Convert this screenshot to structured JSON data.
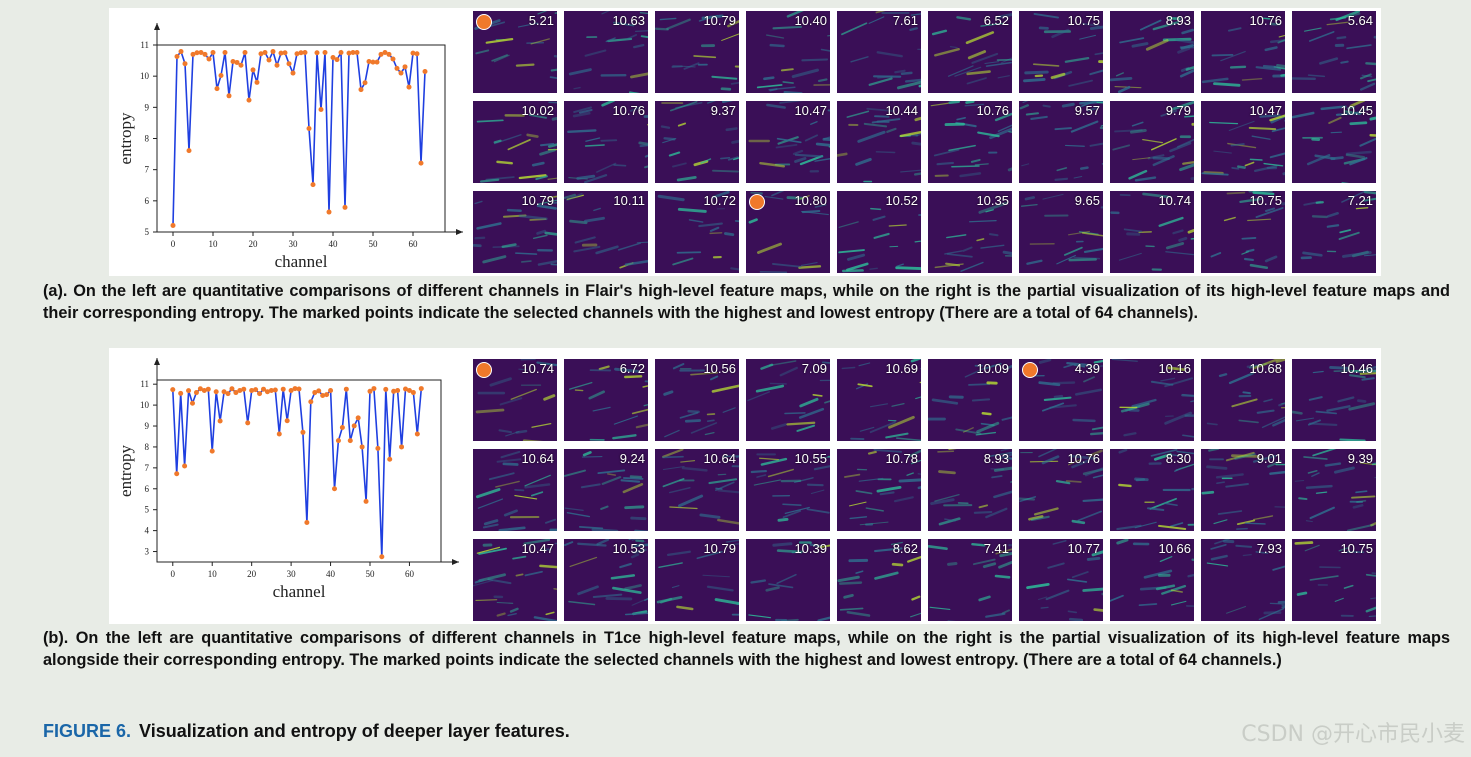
{
  "captions": {
    "a": "(a). On the left are quantitative comparisons of different channels in Flair's high-level feature maps, while on the right is the partial visualization of its high-level feature maps and their corresponding entropy. The marked points indicate the selected channels with the highest and lowest entropy (There are a total of 64 channels).",
    "b": "(b). On the left are quantitative comparisons of different channels in T1ce high-level feature maps, while on the right is the partial visualization of its high-level feature maps alongside their corresponding entropy. The marked points indicate the selected channels with the highest and lowest entropy. (There are a total of 64 channels.)"
  },
  "figure": {
    "label": "FIGURE 6.",
    "title": "Visualization and entropy of deeper layer features."
  },
  "watermark": "CSDN @开心市民小麦",
  "colors": {
    "line": "#1f3fe0",
    "marker": "#f0792b",
    "map_bg": "#3a0f57",
    "feature": "#2dbf9a",
    "label_blue": "#1a66a8"
  },
  "heatmaps_a": {
    "values": [
      "5.21",
      "10.63",
      "10.79",
      "10.40",
      "7.61",
      "6.52",
      "10.75",
      "8.93",
      "10.76",
      "5.64",
      "10.02",
      "10.76",
      "9.37",
      "10.47",
      "10.44",
      "10.76",
      "9.57",
      "9.79",
      "10.47",
      "10.45",
      "10.79",
      "10.11",
      "10.72",
      "10.80",
      "10.52",
      "10.35",
      "9.65",
      "10.74",
      "10.75",
      "7.21"
    ],
    "marked": [
      0,
      23
    ]
  },
  "heatmaps_b": {
    "values": [
      "10.74",
      "6.72",
      "10.56",
      "7.09",
      "10.69",
      "10.09",
      "4.39",
      "10.16",
      "10.68",
      "10.46",
      "10.64",
      "9.24",
      "10.64",
      "10.55",
      "10.78",
      "8.93",
      "10.76",
      "8.30",
      "9.01",
      "9.39",
      "10.47",
      "10.53",
      "10.79",
      "10.39",
      "8.62",
      "7.41",
      "10.77",
      "10.66",
      "7.93",
      "10.75"
    ],
    "marked": [
      0,
      6
    ]
  },
  "chart_data": [
    {
      "type": "line",
      "xlabel": "channel",
      "ylabel": "entropy",
      "xlim": [
        -4,
        68
      ],
      "ylim": [
        5,
        11
      ],
      "xticks": [
        0,
        10,
        20,
        30,
        40,
        50,
        60
      ],
      "yticks": [
        5,
        6,
        7,
        8,
        9,
        10,
        11
      ],
      "grid": false,
      "series": [
        {
          "x": [
            0,
            1,
            2,
            3,
            4,
            5,
            6,
            7,
            8,
            9,
            10,
            11,
            12,
            13,
            14,
            15,
            16,
            17,
            18,
            19,
            20,
            21,
            22,
            23,
            24,
            25,
            26,
            27,
            28,
            29,
            30,
            31,
            32,
            33,
            34,
            35,
            36,
            37,
            38,
            39,
            40,
            41,
            42,
            43,
            44,
            45,
            46,
            47,
            48,
            49,
            50,
            51,
            52,
            53,
            54,
            55,
            56,
            57,
            58,
            59,
            60,
            61,
            62,
            63
          ],
          "y": [
            5.21,
            10.63,
            10.79,
            10.4,
            7.61,
            10.7,
            10.75,
            10.76,
            10.7,
            10.55,
            10.76,
            9.6,
            10.02,
            10.76,
            9.37,
            10.47,
            10.44,
            10.35,
            10.76,
            9.23,
            10.2,
            9.8,
            10.72,
            10.76,
            10.52,
            10.79,
            10.35,
            10.74,
            10.75,
            10.4,
            10.1,
            10.72,
            10.75,
            10.76,
            8.32,
            6.52,
            10.75,
            8.93,
            10.76,
            5.64,
            10.6,
            10.53,
            10.76,
            5.79,
            10.74,
            10.76,
            10.76,
            9.57,
            9.79,
            10.47,
            10.45,
            10.45,
            10.7,
            10.76,
            10.7,
            10.55,
            10.25,
            10.1,
            10.3,
            9.65,
            10.74,
            10.72,
            7.21,
            10.15
          ]
        }
      ]
    },
    {
      "type": "line",
      "xlabel": "channel",
      "ylabel": "entropy",
      "xlim": [
        -4,
        68
      ],
      "ylim": [
        2.5,
        11.2
      ],
      "xticks": [
        0,
        10,
        20,
        30,
        40,
        50,
        60
      ],
      "yticks": [
        3,
        4,
        5,
        6,
        7,
        8,
        9,
        10,
        11
      ],
      "grid": false,
      "series": [
        {
          "x": [
            0,
            1,
            2,
            3,
            4,
            5,
            6,
            7,
            8,
            9,
            10,
            11,
            12,
            13,
            14,
            15,
            16,
            17,
            18,
            19,
            20,
            21,
            22,
            23,
            24,
            25,
            26,
            27,
            28,
            29,
            30,
            31,
            32,
            33,
            34,
            35,
            36,
            37,
            38,
            39,
            40,
            41,
            42,
            43,
            44,
            45,
            46,
            47,
            48,
            49,
            50,
            51,
            52,
            53,
            54,
            55,
            56,
            57,
            58,
            59,
            60,
            61,
            62,
            63
          ],
          "y": [
            10.74,
            6.72,
            10.56,
            7.09,
            10.69,
            10.09,
            10.6,
            10.78,
            10.7,
            10.76,
            7.8,
            10.64,
            9.24,
            10.64,
            10.55,
            10.78,
            10.6,
            10.7,
            10.76,
            9.15,
            10.7,
            10.74,
            10.55,
            10.76,
            10.64,
            10.7,
            10.72,
            8.62,
            10.76,
            9.25,
            10.7,
            10.79,
            10.77,
            8.7,
            4.39,
            10.16,
            10.6,
            10.68,
            10.46,
            10.5,
            10.7,
            6.0,
            8.3,
            8.93,
            10.76,
            8.3,
            9.01,
            9.39,
            8.0,
            5.4,
            10.66,
            10.79,
            7.93,
            2.75,
            10.75,
            7.41,
            10.66,
            10.7,
            8.0,
            10.77,
            10.7,
            10.6,
            8.62,
            10.79
          ]
        }
      ]
    }
  ]
}
